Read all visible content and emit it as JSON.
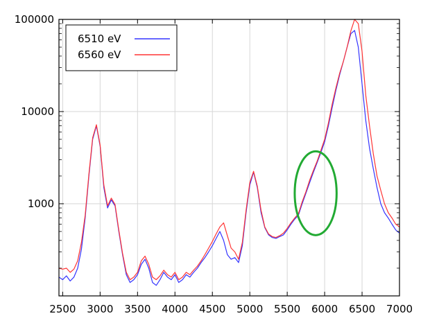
{
  "chart_data": {
    "type": "line",
    "title": "",
    "xlabel": "",
    "ylabel": "",
    "xlim": [
      2450,
      7000
    ],
    "ylim": [
      100,
      100000
    ],
    "yscale": "log",
    "grid": true,
    "x_ticks": [
      2500,
      3000,
      3500,
      4000,
      4500,
      5000,
      5500,
      6000,
      6500,
      7000
    ],
    "x_tick_labels": [
      "2500",
      "3000",
      "3500",
      "4000",
      "4500",
      "5000",
      "5500",
      "6000",
      "6500",
      "7000"
    ],
    "y_ticks": [
      1000,
      10000,
      100000
    ],
    "y_tick_labels": [
      "1000",
      "10000",
      "100000"
    ],
    "legend": {
      "position": "top-left"
    },
    "series": [
      {
        "name": "6510 eV",
        "color": "#3333ff",
        "x": [
          2450,
          2500,
          2550,
          2600,
          2650,
          2700,
          2750,
          2800,
          2850,
          2900,
          2950,
          3000,
          3050,
          3100,
          3150,
          3200,
          3250,
          3300,
          3350,
          3400,
          3450,
          3500,
          3550,
          3600,
          3650,
          3700,
          3750,
          3800,
          3850,
          3900,
          3950,
          4000,
          4050,
          4100,
          4150,
          4200,
          4250,
          4300,
          4350,
          4400,
          4450,
          4500,
          4550,
          4600,
          4650,
          4700,
          4750,
          4800,
          4850,
          4900,
          4950,
          5000,
          5050,
          5100,
          5150,
          5200,
          5250,
          5300,
          5350,
          5400,
          5450,
          5500,
          5550,
          5600,
          5650,
          5700,
          5750,
          5800,
          5850,
          5900,
          5950,
          6000,
          6050,
          6100,
          6150,
          6200,
          6250,
          6300,
          6350,
          6400,
          6450,
          6500,
          6550,
          6600,
          6650,
          6700,
          6750,
          6800,
          6850,
          6900,
          6950,
          7000
        ],
        "y": [
          160,
          150,
          165,
          145,
          160,
          200,
          320,
          700,
          2000,
          5000,
          7000,
          4200,
          1500,
          900,
          1100,
          950,
          500,
          280,
          170,
          140,
          150,
          170,
          220,
          250,
          200,
          140,
          130,
          150,
          180,
          160,
          150,
          170,
          140,
          150,
          170,
          160,
          180,
          200,
          230,
          260,
          300,
          350,
          420,
          500,
          400,
          280,
          250,
          260,
          230,
          350,
          800,
          1600,
          2200,
          1500,
          800,
          550,
          460,
          430,
          420,
          440,
          460,
          520,
          600,
          680,
          750,
          1000,
          1300,
          1700,
          2200,
          2800,
          3600,
          4700,
          7000,
          11000,
          17000,
          25000,
          35000,
          50000,
          70000,
          76000,
          50000,
          20000,
          8000,
          4000,
          2400,
          1500,
          1000,
          800,
          700,
          600,
          520,
          480
        ]
      },
      {
        "name": "6560 eV",
        "color": "#ff3333",
        "x": [
          2450,
          2500,
          2550,
          2600,
          2650,
          2700,
          2750,
          2800,
          2850,
          2900,
          2950,
          3000,
          3050,
          3100,
          3150,
          3200,
          3250,
          3300,
          3350,
          3400,
          3450,
          3500,
          3550,
          3600,
          3650,
          3700,
          3750,
          3800,
          3850,
          3900,
          3950,
          4000,
          4050,
          4100,
          4150,
          4200,
          4250,
          4300,
          4350,
          4400,
          4450,
          4500,
          4550,
          4600,
          4650,
          4700,
          4750,
          4800,
          4850,
          4900,
          4950,
          5000,
          5050,
          5100,
          5150,
          5200,
          5250,
          5300,
          5350,
          5400,
          5450,
          5500,
          5550,
          5600,
          5650,
          5700,
          5750,
          5800,
          5850,
          5900,
          5950,
          6000,
          6050,
          6100,
          6150,
          6200,
          6250,
          6300,
          6350,
          6400,
          6450,
          6500,
          6550,
          6600,
          6650,
          6700,
          6750,
          6800,
          6850,
          6900,
          6950,
          7000
        ],
        "y": [
          200,
          195,
          200,
          180,
          195,
          240,
          380,
          750,
          2100,
          5200,
          7200,
          4300,
          1600,
          950,
          1150,
          980,
          520,
          290,
          180,
          150,
          160,
          180,
          240,
          270,
          220,
          160,
          150,
          165,
          190,
          170,
          160,
          180,
          150,
          160,
          180,
          170,
          190,
          210,
          240,
          280,
          330,
          390,
          470,
          560,
          620,
          450,
          330,
          300,
          250,
          380,
          850,
          1700,
          2250,
          1550,
          850,
          560,
          470,
          440,
          430,
          450,
          480,
          540,
          620,
          700,
          780,
          1050,
          1350,
          1800,
          2300,
          2900,
          3800,
          5000,
          7500,
          12000,
          18000,
          26000,
          35000,
          50000,
          75000,
          100000,
          90000,
          45000,
          15000,
          7000,
          3500,
          2000,
          1400,
          1000,
          800,
          700,
          600,
          560
        ]
      }
    ],
    "annotations": [
      {
        "type": "ellipse",
        "color": "#22aa33",
        "center": [
          5880,
          1300
        ],
        "x_range": [
          5600,
          6160
        ],
        "y_range": [
          480,
          3900
        ]
      }
    ]
  }
}
